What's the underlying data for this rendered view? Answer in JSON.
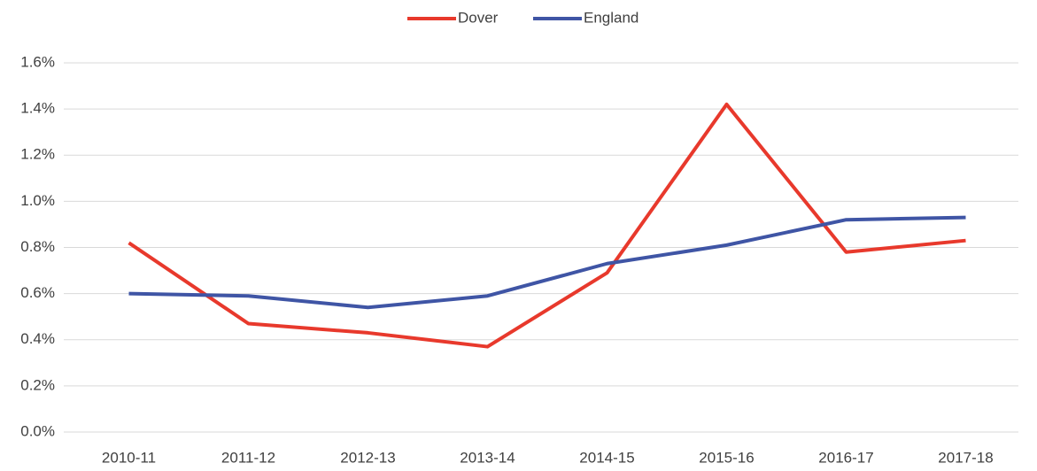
{
  "chart_data": {
    "type": "line",
    "categories": [
      "2010-11",
      "2011-12",
      "2012-13",
      "2013-14",
      "2014-15",
      "2015-16",
      "2016-17",
      "2017-18"
    ],
    "series": [
      {
        "name": "Dover",
        "color": "#e8392c",
        "values": [
          0.82,
          0.47,
          0.43,
          0.37,
          0.69,
          1.42,
          0.78,
          0.83
        ]
      },
      {
        "name": "England",
        "color": "#3f55a5",
        "values": [
          0.6,
          0.59,
          0.54,
          0.59,
          0.73,
          0.81,
          0.92,
          0.93
        ]
      }
    ],
    "ylim": [
      0,
      1.6
    ],
    "yticks": [
      {
        "value": 0,
        "label": "0.0%"
      },
      {
        "value": 0.2,
        "label": "0.2%"
      },
      {
        "value": 0.4,
        "label": "0.4%"
      },
      {
        "value": 0.6,
        "label": "0.6%"
      },
      {
        "value": 0.8,
        "label": "0.8%"
      },
      {
        "value": 1.0,
        "label": "1.0%"
      },
      {
        "value": 1.2,
        "label": "1.2%"
      },
      {
        "value": 1.4,
        "label": "1.4%"
      },
      {
        "value": 1.6,
        "label": "1.6%"
      }
    ],
    "grid": true,
    "legend": "top"
  }
}
